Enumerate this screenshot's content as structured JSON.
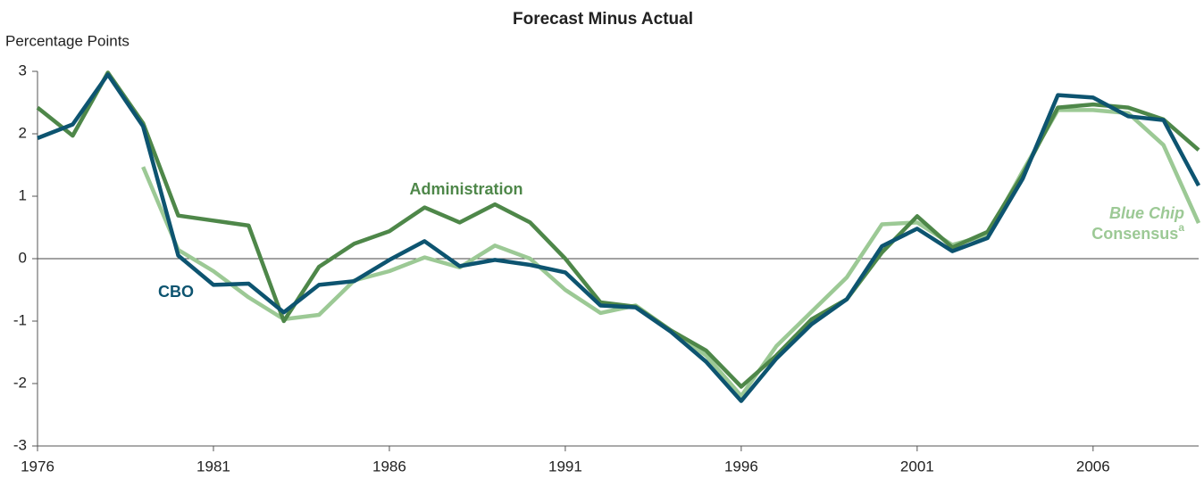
{
  "chart_data": {
    "type": "line",
    "title": "Forecast Minus Actual",
    "y_axis_label": "Percentage Points",
    "x": [
      1976,
      1977,
      1978,
      1979,
      1980,
      1981,
      1982,
      1983,
      1984,
      1985,
      1986,
      1987,
      1988,
      1989,
      1990,
      1991,
      1992,
      1993,
      1994,
      1995,
      1996,
      1997,
      1998,
      1999,
      2000,
      2001,
      2002,
      2003,
      2004,
      2005,
      2006,
      2007,
      2008,
      2009
    ],
    "series": [
      {
        "name": "Administration",
        "color": "#4e8749",
        "values": [
          2.42,
          1.97,
          2.98,
          2.17,
          0.69,
          0.61,
          0.53,
          -1.0,
          -0.13,
          0.24,
          0.44,
          0.82,
          0.58,
          0.87,
          0.58,
          0.0,
          -0.7,
          -0.77,
          -1.15,
          -1.47,
          -2.05,
          -1.55,
          -0.97,
          -0.65,
          0.1,
          0.68,
          0.18,
          0.43,
          1.35,
          2.42,
          2.47,
          2.42,
          2.23,
          1.74
        ]
      },
      {
        "name": "CBO",
        "color": "#0d5470",
        "values": [
          1.93,
          2.15,
          2.95,
          2.12,
          0.05,
          -0.42,
          -0.4,
          -0.86,
          -0.42,
          -0.36,
          -0.02,
          0.28,
          -0.12,
          -0.02,
          -0.1,
          -0.22,
          -0.75,
          -0.78,
          -1.17,
          -1.65,
          -2.28,
          -1.6,
          -1.05,
          -0.65,
          0.2,
          0.48,
          0.12,
          0.33,
          1.28,
          2.62,
          2.58,
          2.28,
          2.22,
          1.17
        ]
      },
      {
        "name": "Blue Chip",
        "name_suffix": "Consensus",
        "footnote_marker": "a",
        "color": "#9cc995",
        "values": [
          null,
          null,
          null,
          1.47,
          0.14,
          -0.2,
          -0.62,
          -0.97,
          -0.9,
          -0.35,
          -0.2,
          0.02,
          -0.14,
          0.21,
          0.0,
          -0.5,
          -0.87,
          -0.75,
          -1.15,
          -1.55,
          -2.2,
          -1.4,
          -0.85,
          -0.3,
          0.55,
          0.58,
          0.22,
          0.38,
          1.4,
          2.38,
          2.38,
          2.33,
          1.82,
          0.57
        ]
      }
    ],
    "xlim": [
      1976,
      2009
    ],
    "xticks": [
      1976,
      1981,
      1986,
      1991,
      1996,
      2001,
      2006
    ],
    "ylim": [
      -3,
      3
    ],
    "yticks": [
      -3,
      -2,
      -1,
      0,
      1,
      2,
      3
    ]
  }
}
